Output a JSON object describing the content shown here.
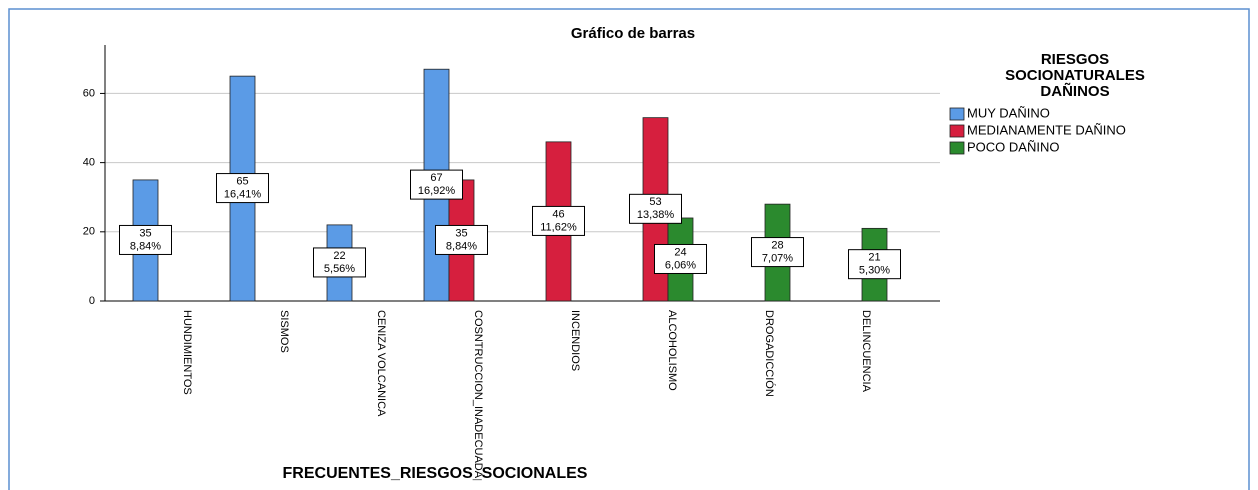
{
  "chart_data": {
    "type": "bar",
    "title": "Gráfico de barras",
    "x_label": "FRECUENTES_RIESGOS_SOCIONALES",
    "legend_title": [
      "RIESGOS",
      "SOCIONATURALES",
      "DAÑINOS"
    ],
    "legend_position": "right",
    "categories": [
      "HUNDIMIENTOS",
      "SISMOS",
      "CENIZA VOLCANICA",
      "COSNTRUCCION_INADECUADA",
      "INCENDIOS",
      "ALCOHOLISMO",
      "DROGADICCIÓN",
      "DELINCUENCIA"
    ],
    "series": [
      {
        "name": "MUY DAÑINO",
        "color": "#5b9be6",
        "values": [
          35,
          65,
          22,
          67,
          null,
          null,
          null,
          null
        ],
        "percent_labels": [
          "8,84%",
          "16,41%",
          "5,56%",
          "16,92%",
          null,
          null,
          null,
          null
        ]
      },
      {
        "name": "MEDIANAMENTE DAÑINO",
        "color": "#d61f3e",
        "values": [
          null,
          null,
          null,
          35,
          46,
          53,
          null,
          null
        ],
        "percent_labels": [
          null,
          null,
          null,
          "8,84%",
          "11,62%",
          "13,38%",
          null,
          null
        ]
      },
      {
        "name": "POCO DAÑINO",
        "color": "#2b8a2e",
        "values": [
          null,
          null,
          null,
          null,
          null,
          24,
          28,
          21
        ],
        "percent_labels": [
          null,
          null,
          null,
          null,
          null,
          "6,06%",
          "7,07%",
          "5,30%"
        ]
      }
    ],
    "ylim": [
      0,
      74
    ],
    "yticks": [
      0,
      20,
      40,
      60
    ],
    "grid": true
  }
}
